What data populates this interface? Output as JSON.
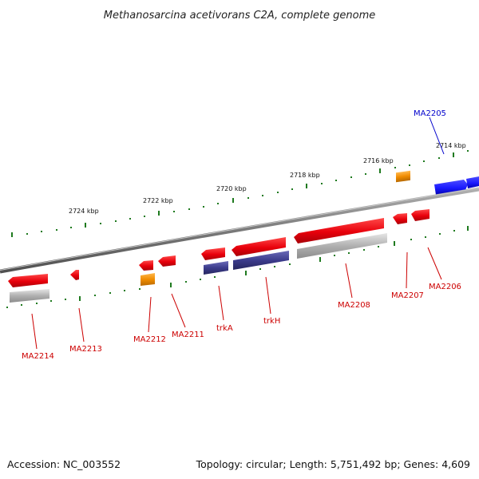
{
  "title": "Methanosarcina acetivorans C2A, complete genome",
  "footer": {
    "accession": "Accession: NC_003552",
    "summary": "Topology: circular; Length: 5,751,492 bp; Genes: 4,609"
  },
  "colors": {
    "backbone": "#7a7a7a",
    "tick": "#1f7a1f",
    "forward_gene": "#e8000b",
    "reverse_gene": "#e8000b",
    "highlight_gene": "#1a1aff",
    "orange_feature": "#f08c00",
    "grey_feature": "#a0a0a0",
    "purple_feature": "#3c3c8c",
    "label_red": "#cc0000",
    "label_blue": "#0000cc"
  },
  "scale_labels": [
    "2714 kbp",
    "2716 kbp",
    "2718 kbp",
    "2720 kbp",
    "2722 kbp",
    "2724 kbp"
  ],
  "gene_labels": [
    "MA2205",
    "MA2206",
    "MA2207",
    "MA2208",
    "trkH",
    "trkA",
    "MA2211",
    "MA2212",
    "MA2213",
    "MA2214"
  ]
}
